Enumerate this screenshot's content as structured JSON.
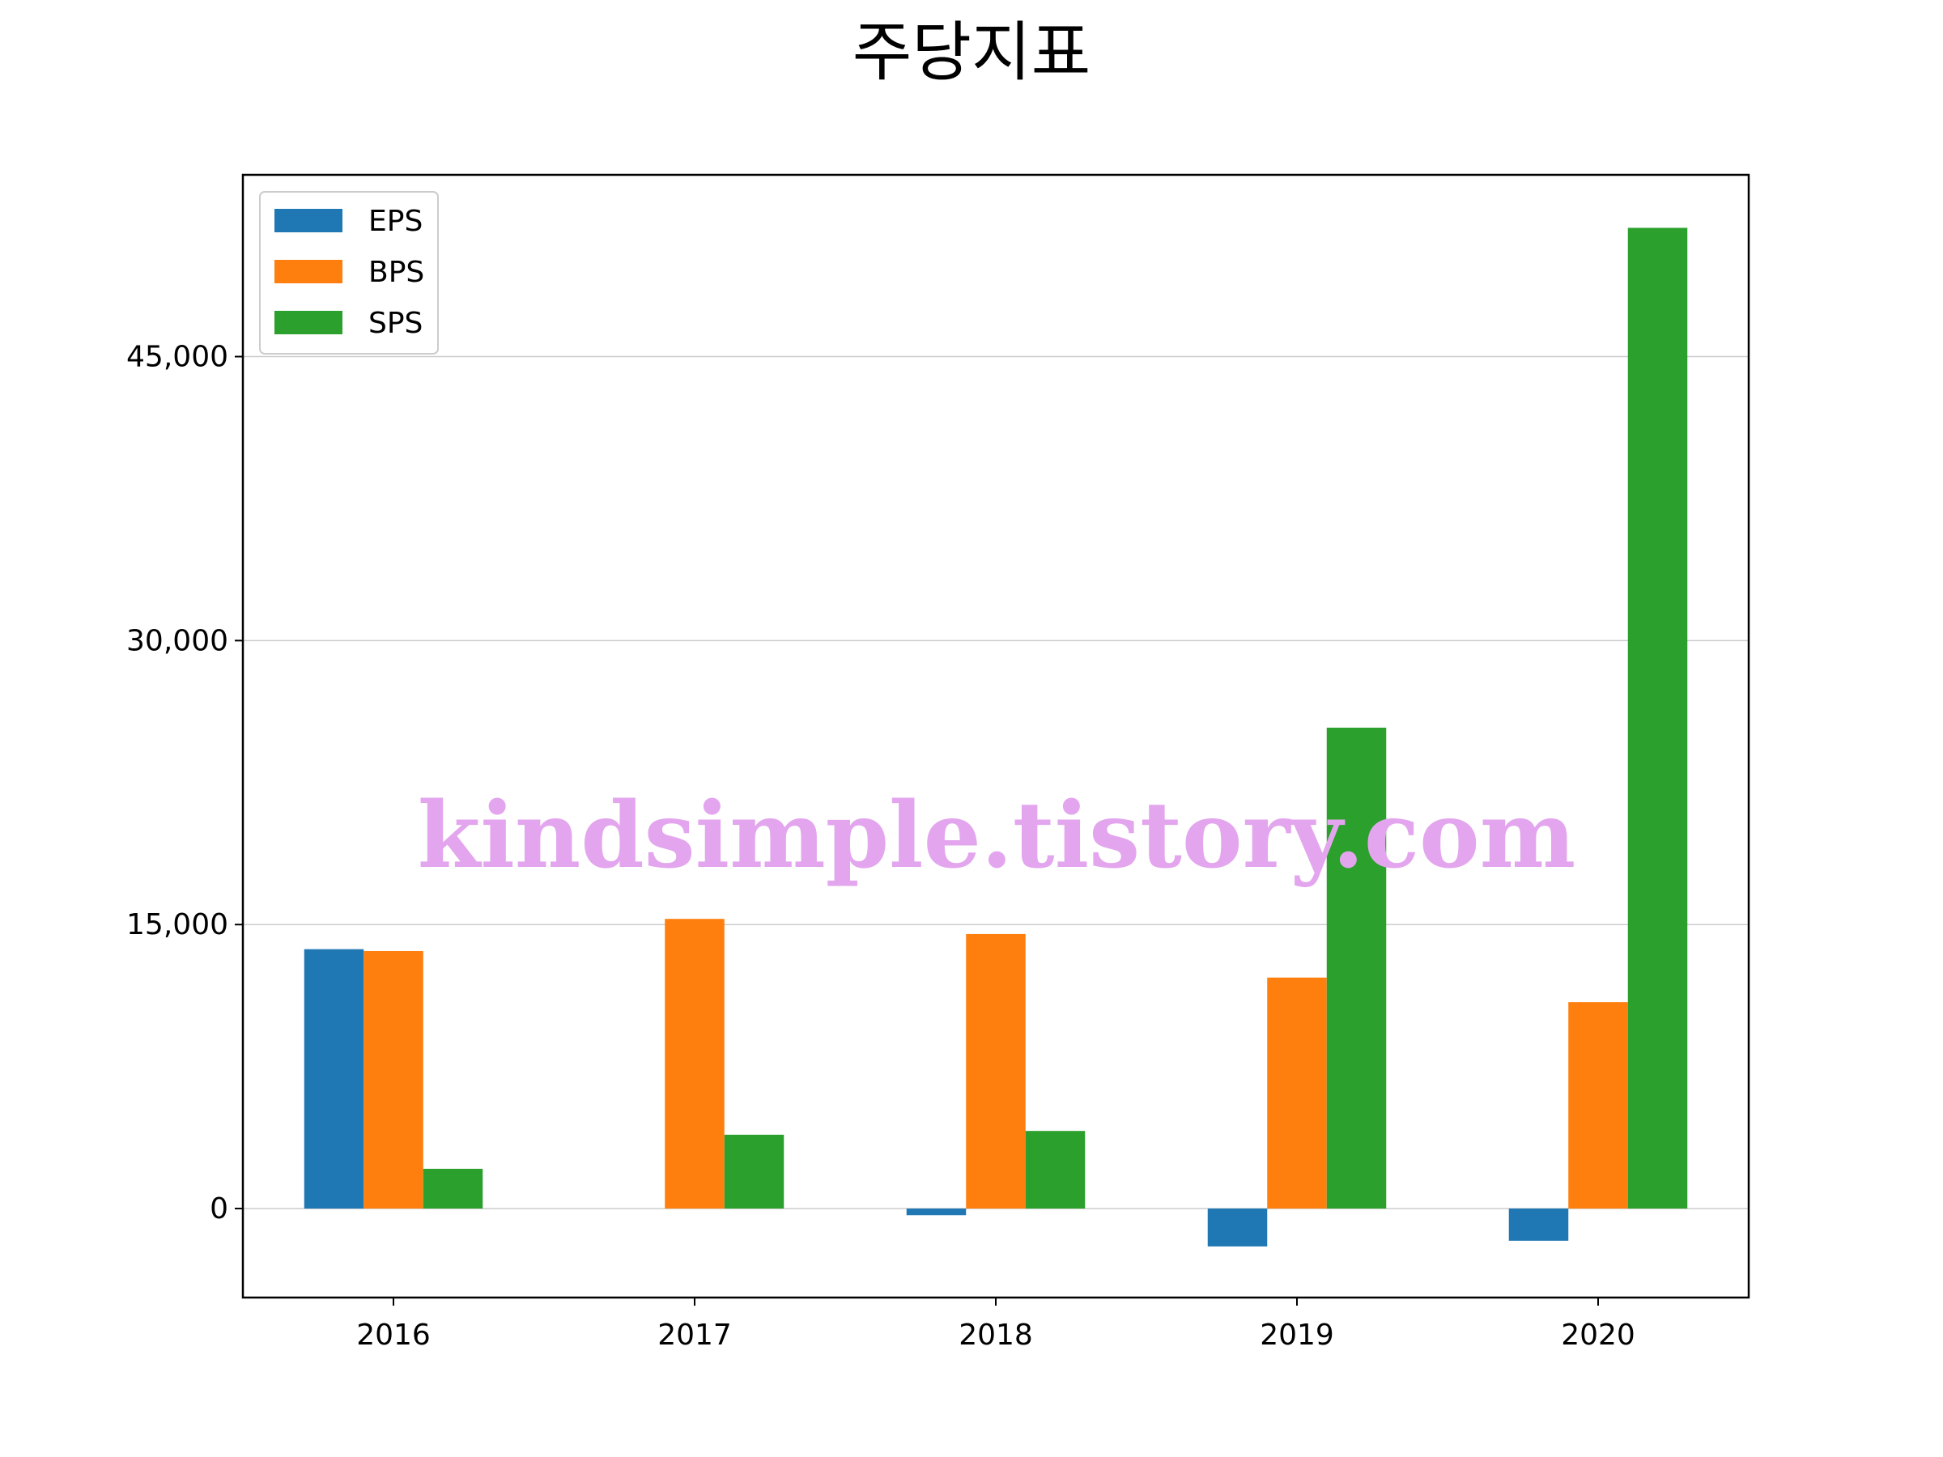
{
  "chart_data": {
    "type": "bar",
    "title": "주당지표",
    "categories": [
      "2016",
      "2017",
      "2018",
      "2019",
      "2020"
    ],
    "series": [
      {
        "name": "EPS",
        "color": "#1f77b4",
        "values": [
          13700,
          0,
          -350,
          -2000,
          -1700
        ]
      },
      {
        "name": "BPS",
        "color": "#ff7f0e",
        "values": [
          13600,
          15300,
          14500,
          12200,
          10900
        ]
      },
      {
        "name": "SPS",
        "color": "#2ca02c",
        "values": [
          2100,
          3900,
          4100,
          25400,
          51800
        ]
      }
    ],
    "ylim": [
      -4700,
      54600
    ],
    "yticks": [
      0,
      15000,
      30000,
      45000
    ],
    "ytick_labels": [
      "0",
      "15,000",
      "30,000",
      "45,000"
    ],
    "grid": "y-horizontal",
    "legend_position": "upper-left"
  },
  "watermark": "kindsimple.tistory.com"
}
